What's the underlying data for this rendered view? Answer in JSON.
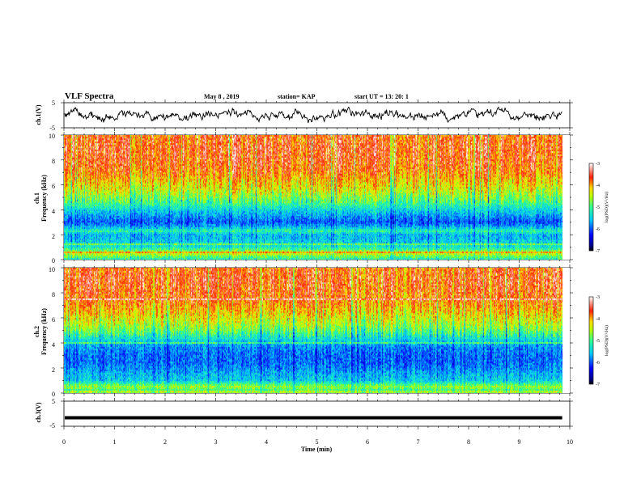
{
  "header": {
    "title": "VLF Spectra",
    "date": "May 8 , 2019",
    "station": "station= KAP",
    "start_ut": "start UT =  13: 20: 1"
  },
  "chart_data": [
    {
      "type": "line",
      "name": "ch1-waveform",
      "ylabel": "ch.1(V)",
      "xlim": [
        0,
        10
      ],
      "ylim": [
        -5,
        5
      ],
      "yticks": [
        "5",
        "-5"
      ],
      "data_end_min": 9.85,
      "level_range": [
        -2,
        2
      ]
    },
    {
      "type": "heatmap",
      "name": "ch1-spectrogram",
      "ylabel_line1": "ch.1",
      "ylabel_line2": "Frequency (kHz)",
      "xlim": [
        0,
        10
      ],
      "ylim": [
        0,
        10
      ],
      "yticks": [
        "0",
        "2",
        "4",
        "6",
        "8",
        "10"
      ],
      "data_end_min": 9.85,
      "freq_profile_kHz": [
        0,
        0.5,
        1,
        1.5,
        2,
        2.3,
        2.6,
        3,
        3.5,
        4,
        4.5,
        5,
        5.5,
        6,
        7,
        8,
        9,
        10
      ],
      "freq_profile_logpsd": [
        -5.2,
        -4.4,
        -5.3,
        -5.5,
        -5.6,
        -5.1,
        -5.6,
        -6.0,
        -5.7,
        -5.4,
        -5.0,
        -4.7,
        -4.4,
        -4.2,
        -3.8,
        -3.65,
        -3.6,
        -3.7
      ],
      "colorbar": {
        "label": "log(PSD)(V²/Hz)",
        "ticks": [
          "-3",
          "-4",
          "-5",
          "-6",
          "-7"
        ],
        "range": [
          -7,
          -3
        ]
      }
    },
    {
      "type": "heatmap",
      "name": "ch2-spectrogram",
      "ylabel_line1": "ch.2",
      "ylabel_line2": "Frequency (kHz)",
      "xlim": [
        0,
        10
      ],
      "ylim": [
        0,
        10
      ],
      "yticks": [
        "0",
        "2",
        "4",
        "6",
        "8",
        "10"
      ],
      "data_end_min": 9.85,
      "freq_profile_kHz": [
        0,
        0.5,
        1,
        1.5,
        2,
        2.5,
        3,
        3.5,
        4,
        4.5,
        5,
        5.5,
        6,
        7,
        8,
        9,
        10
      ],
      "freq_profile_logpsd": [
        -5.3,
        -4.6,
        -5.5,
        -5.6,
        -5.8,
        -5.9,
        -5.9,
        -5.8,
        -5.6,
        -5.2,
        -4.8,
        -4.5,
        -4.3,
        -3.9,
        -3.7,
        -3.6,
        -3.7
      ],
      "colorbar": {
        "label": "log(PSD)(V²/Hz)",
        "ticks": [
          "-3",
          "-4",
          "-5",
          "-6",
          "-7"
        ],
        "range": [
          -7,
          -3
        ]
      }
    },
    {
      "type": "line",
      "name": "ch3-waveform",
      "ylabel": "ch.3(V)",
      "xlim": [
        0,
        10
      ],
      "ylim": [
        -5,
        5
      ],
      "yticks": [
        "5",
        "-5"
      ],
      "data_end_min": 9.85,
      "level": -1.6
    }
  ],
  "xaxis": {
    "label": "Time (min)",
    "ticks": [
      "0",
      "1",
      "2",
      "3",
      "4",
      "5",
      "6",
      "7",
      "8",
      "9",
      "10"
    ]
  }
}
